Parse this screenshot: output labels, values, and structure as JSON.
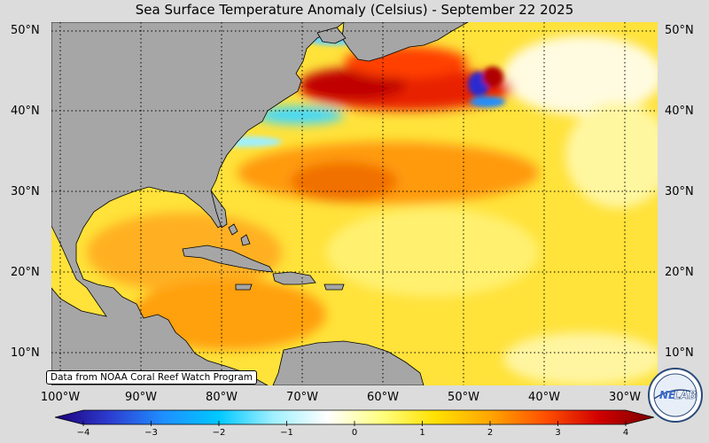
{
  "title": "Sea Surface Temperature Anomaly (Celsius) - September 22 2025",
  "credit": "Data from NOAA Coral Reef Watch Program",
  "latitude_labels": [
    "50°N",
    "40°N",
    "30°N",
    "20°N",
    "10°N"
  ],
  "longitude_labels": [
    "100°W",
    "90°W",
    "80°W",
    "70°W",
    "60°W",
    "50°W",
    "40°W",
    "30°W"
  ],
  "colorbar": {
    "min": -4,
    "max": 4,
    "ticks": [
      "−4",
      "−3",
      "−2",
      "−1",
      "0",
      "1",
      "2",
      "3",
      "4"
    ],
    "colors": [
      "#1b007a",
      "#2d3cd0",
      "#1e90ff",
      "#00c8ff",
      "#9ff0ff",
      "#ffffff",
      "#ffff80",
      "#ffe000",
      "#ffa500",
      "#ff5000",
      "#d00000",
      "#7a0000"
    ]
  },
  "logo": {
    "text_1": "NE",
    "text_2": "LAB"
  },
  "colors": {
    "land": "#a6a6a6",
    "ocean_base": "#ffe23a",
    "background": "#dcdcdc"
  }
}
